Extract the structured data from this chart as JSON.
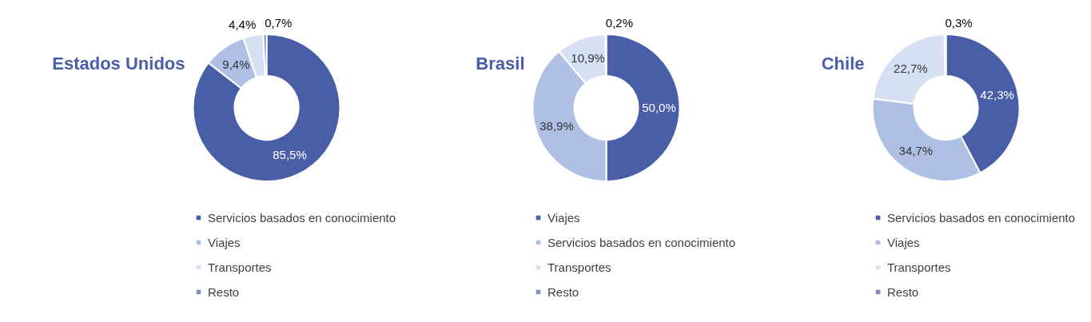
{
  "chart_data": [
    {
      "type": "donut",
      "title": "Estados Unidos",
      "categories": [
        "Servicios basados en conocimiento",
        "Viajes",
        "Transportes",
        "Resto"
      ],
      "values": [
        85.5,
        9.4,
        4.4,
        0.7
      ],
      "value_labels": [
        "85,5%",
        "9,4%",
        "4,4%",
        "0,7%"
      ],
      "colors": [
        "#4a5ea8",
        "#afc0e4",
        "#d6e0f3",
        "#7d8db5"
      ],
      "legend": "bottom"
    },
    {
      "type": "donut",
      "title": "Brasil",
      "categories": [
        "Viajes",
        "Servicios basados en conocimiento",
        "Transportes",
        "Resto"
      ],
      "values": [
        50.0,
        38.9,
        10.9,
        0.2
      ],
      "value_labels": [
        "50,0%",
        "38,9%",
        "10,9%",
        "0,2%"
      ],
      "colors": [
        "#4a5ea8",
        "#afc0e4",
        "#d6e0f3",
        "#7d8db5"
      ],
      "legend": "bottom"
    },
    {
      "type": "donut",
      "title": "Chile",
      "categories": [
        "Servicios basados en conocimiento",
        "Viajes",
        "Transportes",
        "Resto"
      ],
      "values": [
        42.3,
        34.7,
        22.7,
        0.3
      ],
      "value_labels": [
        "42,3%",
        "34,7%",
        "22,7%",
        "0,3%"
      ],
      "colors": [
        "#4a5ea8",
        "#afc0e4",
        "#d6e0f3",
        "#7d8db5"
      ],
      "legend": "bottom"
    }
  ]
}
